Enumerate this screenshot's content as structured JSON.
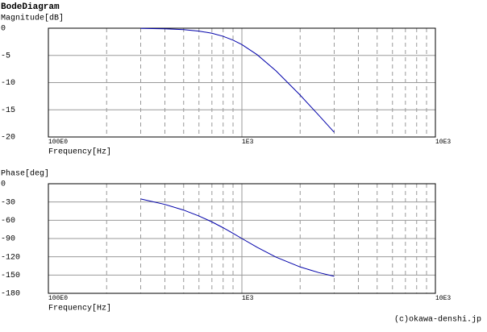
{
  "title": "BodeDiagram",
  "footer": "(c)okawa-denshi.jp",
  "chart_data": [
    {
      "type": "line",
      "ylabel": "Magnitude[dB]",
      "xlabel": "Frequency[Hz]",
      "xscale": "log",
      "grid": true,
      "x": [
        300,
        400,
        500,
        600,
        700,
        800,
        900,
        1000,
        1200,
        1500,
        2000,
        2500,
        3000
      ],
      "series": [
        {
          "color": "#0000aa",
          "values": [
            -0.035,
            -0.11,
            -0.26,
            -0.53,
            -0.93,
            -1.49,
            -2.19,
            -3.01,
            -4.88,
            -7.83,
            -12.3,
            -16.03,
            -19.14
          ]
        }
      ],
      "xlim": [
        100,
        10000
      ],
      "xticks": [
        {
          "value": 100,
          "label": "100E0"
        },
        {
          "value": 1000,
          "label": "1E3"
        },
        {
          "value": 10000,
          "label": "10E3"
        }
      ],
      "xminorticks": [
        200,
        300,
        400,
        500,
        600,
        700,
        800,
        900,
        2000,
        3000,
        4000,
        5000,
        6000,
        7000,
        8000,
        9000
      ],
      "ylim": [
        -20,
        0
      ],
      "yticks": [
        0,
        -5,
        -10,
        -15,
        -20
      ]
    },
    {
      "type": "line",
      "ylabel": "Phase[deg]",
      "xlabel": "Frequency[Hz]",
      "xscale": "log",
      "grid": true,
      "x": [
        300,
        400,
        500,
        600,
        700,
        800,
        900,
        1000,
        1200,
        1500,
        2000,
        2500,
        3000
      ],
      "series": [
        {
          "color": "#0000aa",
          "values": [
            -25.0,
            -34.0,
            -43.3,
            -53.0,
            -62.7,
            -72.3,
            -81.5,
            -90,
            -104.5,
            -120.5,
            -136.7,
            -146.0,
            -152.1
          ]
        }
      ],
      "xlim": [
        100,
        10000
      ],
      "xticks": [
        {
          "value": 100,
          "label": "100E0"
        },
        {
          "value": 1000,
          "label": "1E3"
        },
        {
          "value": 10000,
          "label": "10E3"
        }
      ],
      "xminorticks": [
        200,
        300,
        400,
        500,
        600,
        700,
        800,
        900,
        2000,
        3000,
        4000,
        5000,
        6000,
        7000,
        8000,
        9000
      ],
      "ylim": [
        -180,
        0
      ],
      "yticks": [
        0,
        -30,
        -60,
        -90,
        -120,
        -150,
        -180
      ]
    }
  ]
}
